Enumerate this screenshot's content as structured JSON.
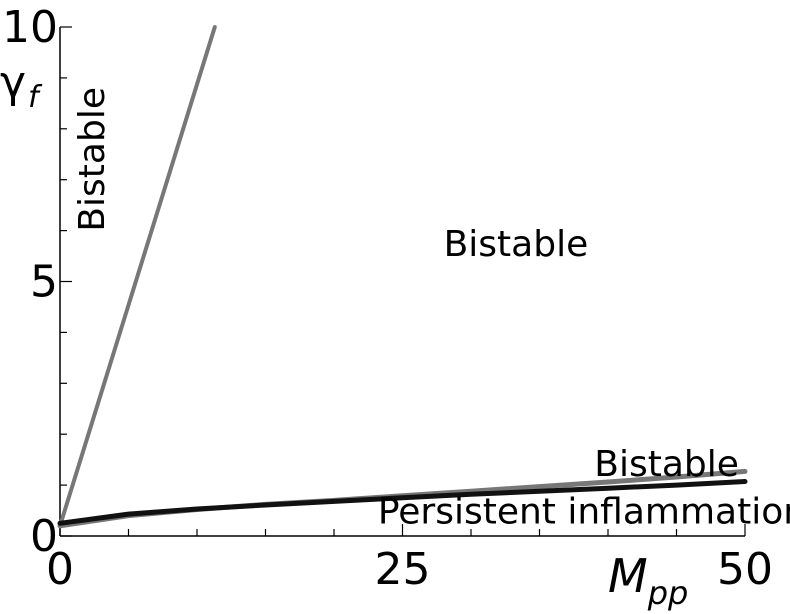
{
  "chart_data": {
    "type": "line",
    "xlabel": {
      "main": "M",
      "sub": "pp"
    },
    "ylabel": {
      "main": "γ",
      "sub": "f"
    },
    "xlim": [
      0,
      50
    ],
    "ylim": [
      0,
      10
    ],
    "x_ticks": [
      "0",
      "25",
      "50"
    ],
    "y_ticks": [
      "0",
      "5",
      "10"
    ],
    "grid": false,
    "series": [
      {
        "color": "#777777",
        "x": [
          0,
          11.3
        ],
        "y": [
          0.2,
          10
        ]
      },
      {
        "color": "#777777",
        "x": [
          0,
          5,
          10,
          15,
          20,
          25,
          30,
          35,
          40,
          45,
          50
        ],
        "y": [
          0.2,
          0.4,
          0.52,
          0.62,
          0.7,
          0.79,
          0.88,
          0.97,
          1.06,
          1.16,
          1.27
        ]
      },
      {
        "color": "#111111",
        "x": [
          0,
          5,
          10,
          15,
          20,
          25,
          30,
          35,
          40,
          45,
          50
        ],
        "y": [
          0.25,
          0.43,
          0.53,
          0.61,
          0.68,
          0.75,
          0.82,
          0.88,
          0.94,
          1.0,
          1.07
        ]
      }
    ],
    "annotations": [
      {
        "text": "Bistable",
        "x": 3.2,
        "y": 7.4,
        "rotate": -90
      },
      {
        "text": "Bistable",
        "x": 28,
        "y": 5.5,
        "rotate": 0
      },
      {
        "text": "Bistable",
        "x": 39,
        "y": 1.18,
        "rotate": 0
      },
      {
        "text": "Persistent inflammation",
        "x": 23.2,
        "y": 0.25,
        "rotate": 0
      }
    ]
  }
}
